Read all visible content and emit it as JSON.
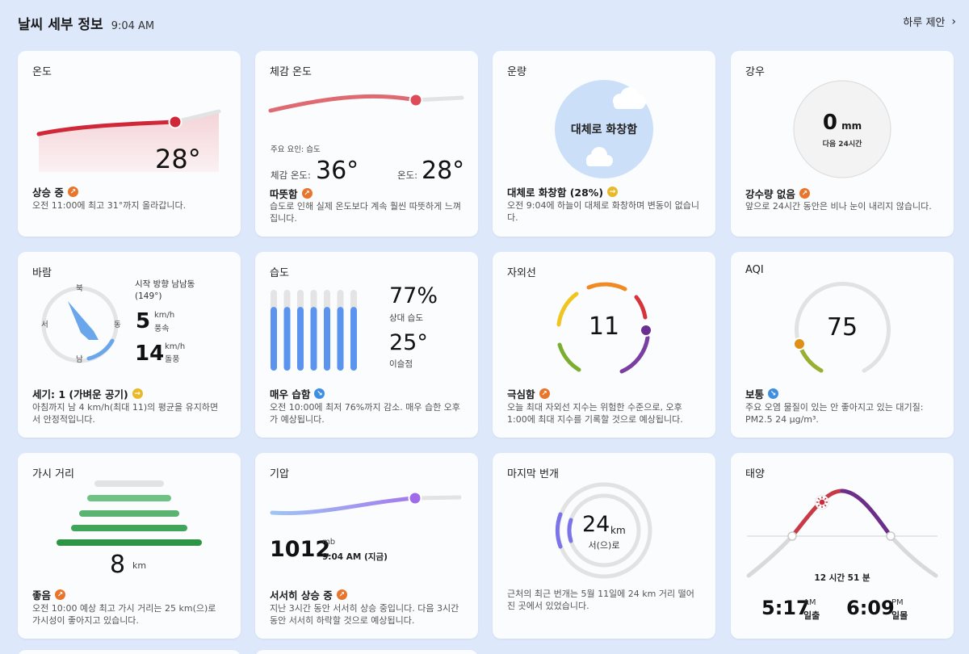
{
  "header": {
    "title": "날씨 세부 정보",
    "time": "9:04 AM",
    "link_label": "하루 제안"
  },
  "temp": {
    "title": "온도",
    "value": "28°",
    "status": "상승 중",
    "desc": "오전 11:00에 최고 31°까지 올라갑니다.",
    "accent": "#d02838"
  },
  "feels": {
    "title": "체감 온도",
    "factor": "주요 요인: 습도",
    "feels_label": "체감 온도:",
    "feels_value": "36°",
    "temp_label": "온도:",
    "temp_value": "28°",
    "status": "따뜻함",
    "desc": "습도로 인해 실제 온도보다 계속 훨씬 따뜻하게 느껴집니다."
  },
  "cloud": {
    "title": "운량",
    "center": "대체로 화창함",
    "status": "대체로 화창함 (28%)",
    "percent": 28,
    "desc": "오전 9:04에 하늘이 대체로 화창하며 변동이 없습니다."
  },
  "rain": {
    "title": "강우",
    "value": "0",
    "unit": "mm",
    "sub": "다음 24시간",
    "status": "강수량 없음",
    "desc": "앞으로 24시간 동안은 비나 눈이 내리지 않습니다."
  },
  "wind": {
    "title": "바람",
    "n": "북",
    "s": "남",
    "e": "동",
    "w": "서",
    "direction": "시작 방향 남남동 (149°)",
    "degrees": 149,
    "speed": "5",
    "speed_unit": "km/h",
    "speed_label": "풍속",
    "gust": "14",
    "gust_unit": "km/h",
    "gust_label": "돌풍",
    "status": "세기: 1 (가벼운 공기)",
    "desc": "아침까지 남 4 km/h(최대 11)의 평균을 유지하면서 안정적입니다."
  },
  "humidity": {
    "title": "습도",
    "value": "77%",
    "value_label": "상대 습도",
    "dew": "25°",
    "dew_label": "이슬점",
    "percent": 77,
    "status": "매우 습함",
    "desc": "오전 10:00에 최저 76%까지 감소. 매우 습한 오후가 예상됩니다."
  },
  "uv": {
    "title": "자외선",
    "value": "11",
    "status": "극심함",
    "desc": "오늘 최대 자외선 지수는 위험한 수준으로, 오후 1:00에 최대 지수를 기록할 것으로 예상됩니다."
  },
  "aqi": {
    "title": "AQI",
    "value": "75",
    "status": "보통",
    "desc": "주요 오염 물질이 있는 안 좋아지고 있는 대기질: PM2.5 24 μg/m³."
  },
  "visibility": {
    "title": "가시 거리",
    "value": "8",
    "unit": "km",
    "status": "좋음",
    "desc": "오전 10:00 예상 최고 가시 거리는 25 km(으)로 가시성이 좋아지고 있습니다."
  },
  "pressure": {
    "title": "기압",
    "value": "1012",
    "unit": "mb",
    "time": "9:04 AM (지금)",
    "status": "서서히 상승 중",
    "desc": "지난 3시간 동안 서서히 상승 중입니다. 다음 3시간 동안 서서히 하락할 것으로 예상됩니다."
  },
  "lightning": {
    "title": "마지막 번개",
    "value": "24",
    "unit": "km",
    "dir": "서(으)로",
    "desc": "근처의 최근 번개는 5월 11일에 24 km 거리 떨어진 곳에서 있었습니다."
  },
  "sun": {
    "title": "태양",
    "daylength": "12 시간 51 분",
    "sunrise": "5:17",
    "sunrise_ampm": "AM",
    "sunrise_label": "일출",
    "sunset": "6:09",
    "sunset_ampm": "PM",
    "sunset_label": "일몰"
  }
}
